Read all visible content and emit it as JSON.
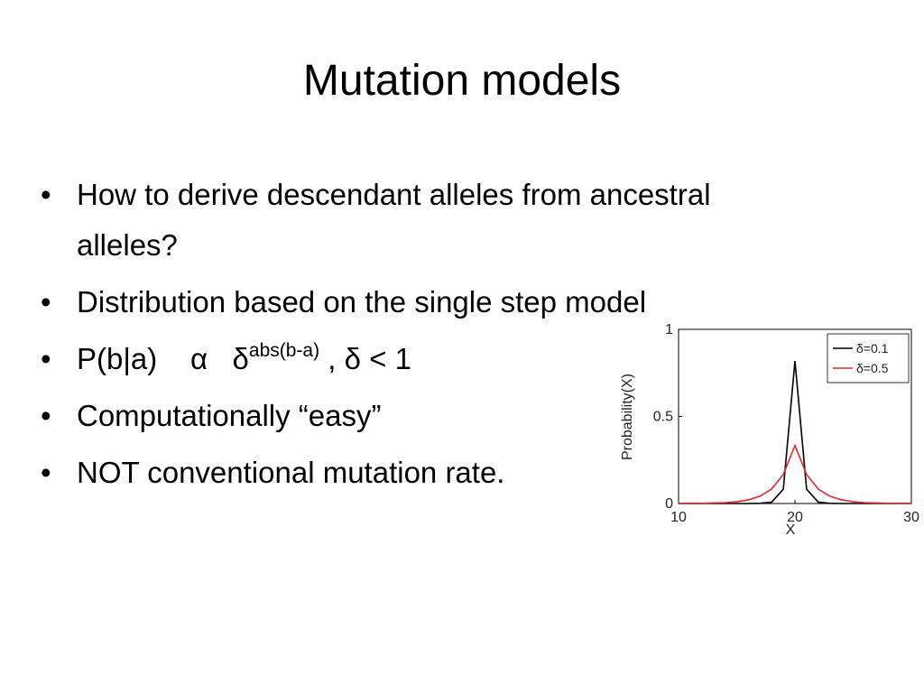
{
  "slide": {
    "title": "Mutation models",
    "bullets": [
      {
        "text": "How to derive descendant alleles from ancestral alleles?"
      },
      {
        "text": "Distribution based on the single step model"
      },
      {
        "text": "P(b|a)    α   δ",
        "sup": "abs(b-a)",
        "after": " , δ < 1"
      },
      {
        "text": "Computationally “easy”"
      },
      {
        "text": "NOT conventional mutation rate."
      }
    ]
  },
  "chart_data": {
    "type": "line",
    "xlabel": "X",
    "ylabel": "Probability(X)",
    "x": [
      10,
      11,
      12,
      13,
      14,
      15,
      16,
      17,
      18,
      19,
      20,
      21,
      22,
      23,
      24,
      25,
      26,
      27,
      28,
      29,
      30
    ],
    "series": [
      {
        "name": "δ=0.1",
        "color": "#000000",
        "values": [
          0,
          0,
          0,
          0,
          0,
          0,
          0,
          0.001,
          0.008,
          0.082,
          0.818,
          0.082,
          0.008,
          0.001,
          0,
          0,
          0,
          0,
          0,
          0,
          0
        ]
      },
      {
        "name": "δ=0.5",
        "color": "#e8262b",
        "values": [
          0,
          0.001,
          0.001,
          0.003,
          0.005,
          0.01,
          0.021,
          0.042,
          0.083,
          0.167,
          0.333,
          0.167,
          0.083,
          0.042,
          0.021,
          0.01,
          0.005,
          0.003,
          0.001,
          0.001,
          0
        ]
      }
    ],
    "xlim": [
      10,
      30
    ],
    "xticks": [
      10,
      20,
      30
    ],
    "ylim": [
      0,
      1
    ],
    "yticks": [
      0,
      0.5,
      1
    ],
    "legend": "top-right"
  }
}
